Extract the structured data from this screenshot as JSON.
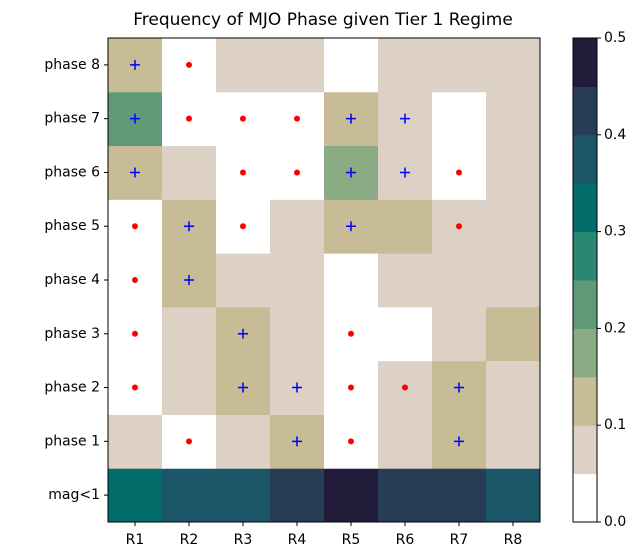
{
  "chart_data": {
    "type": "heatmap",
    "title": "Frequency of MJO Phase given Tier 1 Regime",
    "x_categories": [
      "R1",
      "R2",
      "R3",
      "R4",
      "R5",
      "R6",
      "R7",
      "R8"
    ],
    "y_categories": [
      "mag<1",
      "phase 1",
      "phase 2",
      "phase 3",
      "phase 4",
      "phase 5",
      "phase 6",
      "phase 7",
      "phase 8"
    ],
    "values": [
      [
        0.32,
        0.37,
        0.37,
        0.42,
        0.47,
        0.42,
        0.42,
        0.37
      ],
      [
        0.07,
        0.03,
        0.07,
        0.12,
        0.03,
        0.07,
        0.12,
        0.07
      ],
      [
        0.03,
        0.07,
        0.12,
        0.07,
        0.03,
        0.07,
        0.12,
        0.07
      ],
      [
        0.03,
        0.07,
        0.12,
        0.07,
        0.03,
        0.03,
        0.07,
        0.12
      ],
      [
        0.03,
        0.12,
        0.07,
        0.07,
        0.03,
        0.07,
        0.07,
        0.07
      ],
      [
        0.03,
        0.12,
        0.03,
        0.07,
        0.12,
        0.12,
        0.07,
        0.07
      ],
      [
        0.12,
        0.07,
        0.03,
        0.03,
        0.17,
        0.07,
        0.03,
        0.07
      ],
      [
        0.22,
        0.03,
        0.03,
        0.03,
        0.12,
        0.07,
        0.03,
        0.07
      ],
      [
        0.12,
        0.03,
        0.07,
        0.07,
        0.03,
        0.07,
        0.07,
        0.07
      ]
    ],
    "markers": [
      [
        null,
        null,
        null,
        null,
        null,
        null,
        null,
        null
      ],
      [
        null,
        "dot",
        null,
        "plus",
        "dot",
        null,
        "plus",
        null
      ],
      [
        "dot",
        null,
        "plus",
        "plus",
        "dot",
        "dot",
        "plus",
        null
      ],
      [
        "dot",
        null,
        "plus",
        null,
        "dot",
        null,
        null,
        null
      ],
      [
        "dot",
        "plus",
        null,
        null,
        null,
        null,
        null,
        null
      ],
      [
        "dot",
        "plus",
        "dot",
        null,
        "plus",
        null,
        "dot",
        null
      ],
      [
        "plus",
        null,
        "dot",
        "dot",
        "plus",
        "plus",
        "dot",
        null
      ],
      [
        "plus",
        "dot",
        "dot",
        "dot",
        "plus",
        "plus",
        null,
        null
      ],
      [
        "plus",
        "dot",
        null,
        null,
        null,
        null,
        null,
        null
      ]
    ],
    "marker_colors": {
      "plus": "#0000ff",
      "dot": "#ff0000"
    },
    "colors": [
      "#ffffff",
      "#ddd1c6",
      "#c8bc96",
      "#8aab84",
      "#5e9a78",
      "#2a8774",
      "#036d6c",
      "#1b5668",
      "#263d55",
      "#221c3a"
    ],
    "zlim": [
      0,
      0.5
    ],
    "zticks": [
      {
        "value": 0,
        "label": "0.0"
      },
      0.1,
      0.2,
      0.3,
      0.4,
      0.5
    ]
  }
}
